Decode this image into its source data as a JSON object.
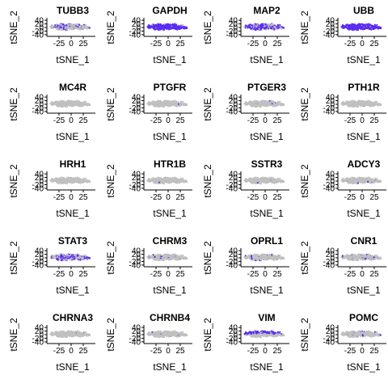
{
  "chart_data": {
    "type": "scatter",
    "layout": "facet-grid",
    "rows": 5,
    "cols": 4,
    "xlabel": "tSNE_1",
    "ylabel": "tSNE_2",
    "xlim": [
      -50,
      50
    ],
    "ylim": [
      -45,
      45
    ],
    "x_ticks": [
      -25,
      0,
      25
    ],
    "y_ticks": [
      40,
      20,
      0,
      -20,
      -40
    ],
    "x_tick_labels": [
      "-25",
      "0",
      "25"
    ],
    "y_tick_labels": [
      "40",
      "20",
      "0",
      "-20",
      "-40"
    ],
    "colors": {
      "low": "#c0c0c0",
      "high": "#5b2cf5"
    },
    "panels": [
      {
        "title": "TUBB3",
        "expressed_fraction": 0.22
      },
      {
        "title": "GAPDH",
        "expressed_fraction": 0.93
      },
      {
        "title": "MAP2",
        "expressed_fraction": 0.55
      },
      {
        "title": "UBB",
        "expressed_fraction": 0.95
      },
      {
        "title": "MC4R",
        "expressed_fraction": 0.0
      },
      {
        "title": "PTGFR",
        "expressed_fraction": 0.005
      },
      {
        "title": "PTGER3",
        "expressed_fraction": 0.02
      },
      {
        "title": "PTH1R",
        "expressed_fraction": 0.005
      },
      {
        "title": "HRH1",
        "expressed_fraction": 0.01
      },
      {
        "title": "HTR1B",
        "expressed_fraction": 0.01
      },
      {
        "title": "SSTR3",
        "expressed_fraction": 0.005
      },
      {
        "title": "ADCY3",
        "expressed_fraction": 0.03
      },
      {
        "title": "STAT3",
        "expressed_fraction": 0.42
      },
      {
        "title": "CHRM3",
        "expressed_fraction": 0.08
      },
      {
        "title": "OPRL1",
        "expressed_fraction": 0.06
      },
      {
        "title": "CNR1",
        "expressed_fraction": 0.1
      },
      {
        "title": "CHRNA3",
        "expressed_fraction": 0.01
      },
      {
        "title": "CHRNB4",
        "expressed_fraction": 0.01
      },
      {
        "title": "VIM",
        "expressed_fraction": 0.6,
        "region": "top"
      },
      {
        "title": "POMC",
        "expressed_fraction": 0.07
      }
    ]
  }
}
